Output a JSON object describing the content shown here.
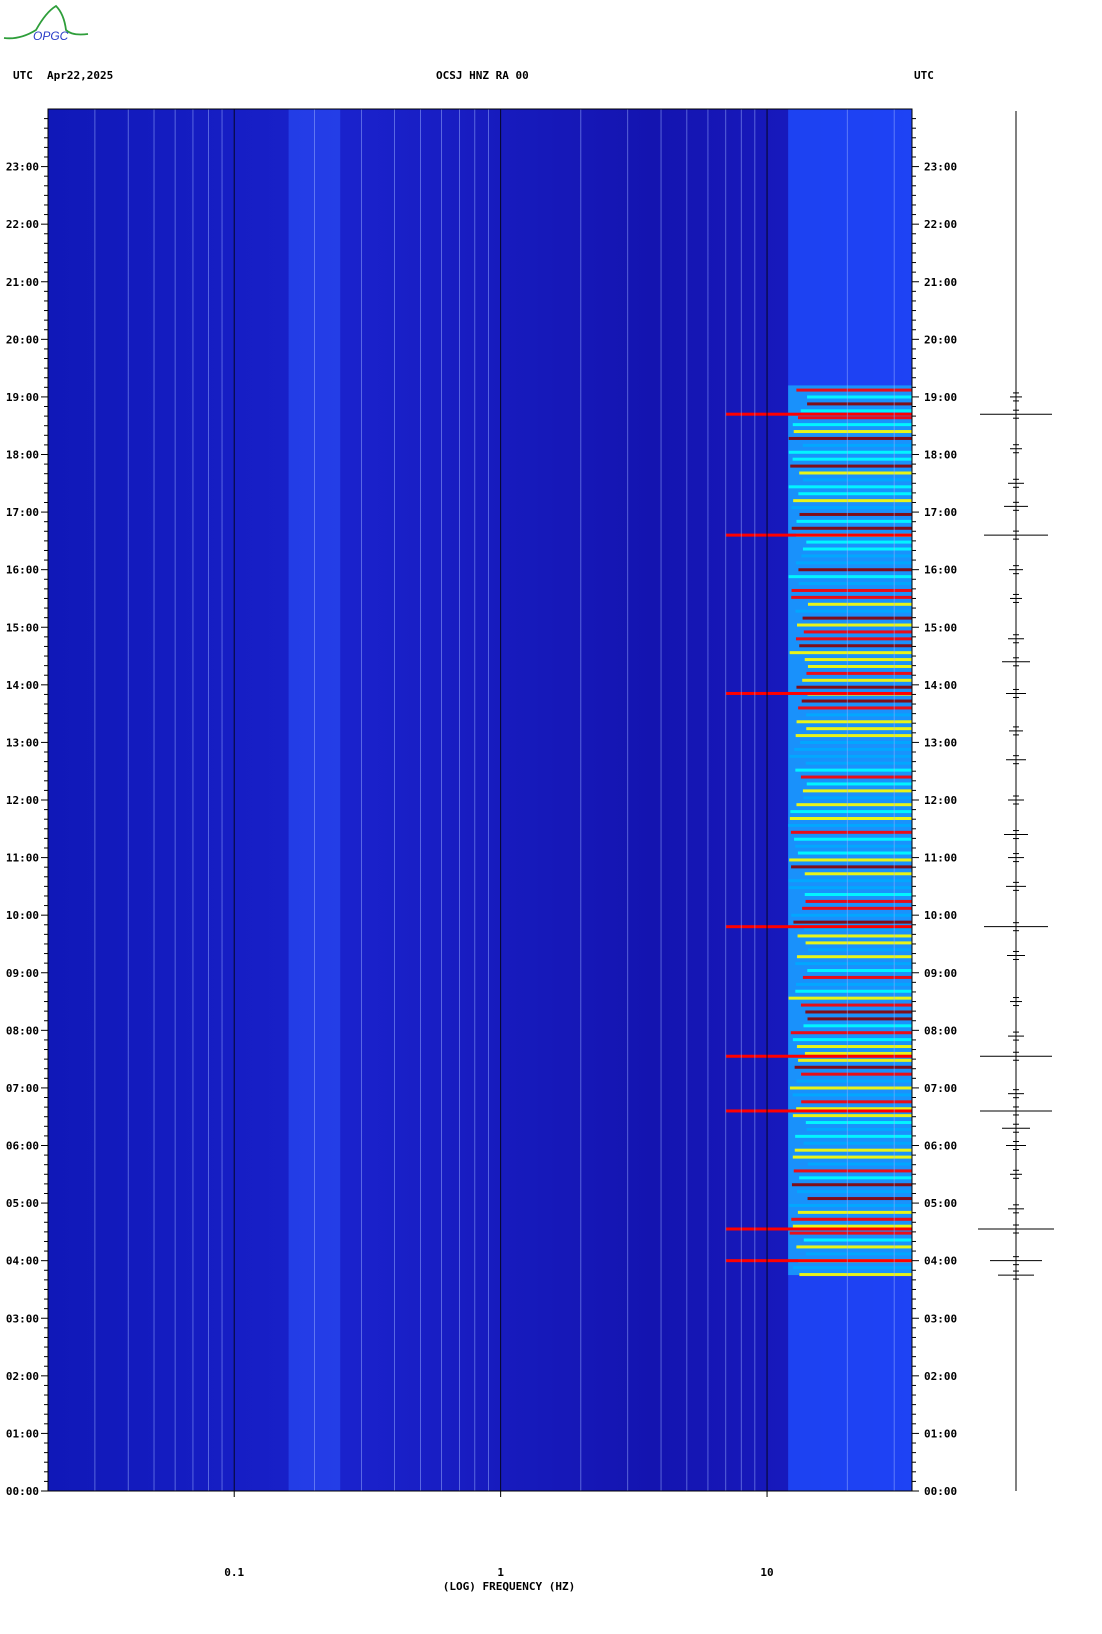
{
  "logo": {
    "text": "OPGC"
  },
  "header": {
    "left_tz": "UTC",
    "date": "Apr22,2025",
    "station": "OCSJ HNZ RA 00",
    "right_tz": "UTC"
  },
  "chart_data": {
    "type": "heatmap",
    "title": "OCSJ HNZ RA 00",
    "xlabel": "(LOG) FREQUENCY (HZ)",
    "x_scale": "log",
    "xlim": [
      0.02,
      35
    ],
    "x_ticks": [
      {
        "value": 0.1,
        "label": "0.1"
      },
      {
        "value": 1,
        "label": "1"
      },
      {
        "value": 10,
        "label": "10"
      }
    ],
    "ylabel": "UTC",
    "ylim_hours": [
      0,
      24
    ],
    "y_ticks": [
      "00:00",
      "01:00",
      "02:00",
      "03:00",
      "04:00",
      "05:00",
      "06:00",
      "07:00",
      "08:00",
      "09:00",
      "10:00",
      "11:00",
      "12:00",
      "13:00",
      "14:00",
      "15:00",
      "16:00",
      "17:00",
      "18:00",
      "19:00",
      "20:00",
      "21:00",
      "22:00",
      "23:00"
    ],
    "colormap": [
      "#00008b",
      "#0000ff",
      "#00aaff",
      "#00ffff",
      "#ffff00",
      "#ff0000",
      "#8b0000"
    ],
    "background_level_color": "#1a1fc8",
    "energy_band_hz": [
      12,
      35
    ],
    "microseism_band_hz": [
      0.16,
      0.25
    ],
    "active_period_hours": [
      3.75,
      19.2
    ],
    "strong_events_hours": [
      4.0,
      4.55,
      6.6,
      7.55,
      9.8,
      13.85,
      16.6,
      18.7
    ],
    "trace_events": [
      {
        "hour": 3.75,
        "amp": 18
      },
      {
        "hour": 4.0,
        "amp": 26
      },
      {
        "hour": 4.55,
        "amp": 38
      },
      {
        "hour": 4.9,
        "amp": 8
      },
      {
        "hour": 5.5,
        "amp": 6
      },
      {
        "hour": 6.0,
        "amp": 10
      },
      {
        "hour": 6.3,
        "amp": 14
      },
      {
        "hour": 6.6,
        "amp": 36
      },
      {
        "hour": 6.9,
        "amp": 8
      },
      {
        "hour": 7.55,
        "amp": 36
      },
      {
        "hour": 7.9,
        "amp": 8
      },
      {
        "hour": 8.5,
        "amp": 6
      },
      {
        "hour": 9.3,
        "amp": 9
      },
      {
        "hour": 9.8,
        "amp": 32
      },
      {
        "hour": 10.5,
        "amp": 10
      },
      {
        "hour": 11.0,
        "amp": 8
      },
      {
        "hour": 11.4,
        "amp": 12
      },
      {
        "hour": 12.0,
        "amp": 8
      },
      {
        "hour": 12.7,
        "amp": 10
      },
      {
        "hour": 13.2,
        "amp": 7
      },
      {
        "hour": 13.85,
        "amp": 10
      },
      {
        "hour": 14.4,
        "amp": 14
      },
      {
        "hour": 14.8,
        "amp": 8
      },
      {
        "hour": 15.5,
        "amp": 6
      },
      {
        "hour": 16.0,
        "amp": 7
      },
      {
        "hour": 16.6,
        "amp": 32
      },
      {
        "hour": 17.1,
        "amp": 12
      },
      {
        "hour": 17.5,
        "amp": 8
      },
      {
        "hour": 18.1,
        "amp": 6
      },
      {
        "hour": 18.7,
        "amp": 36
      },
      {
        "hour": 19.0,
        "amp": 6
      }
    ]
  }
}
